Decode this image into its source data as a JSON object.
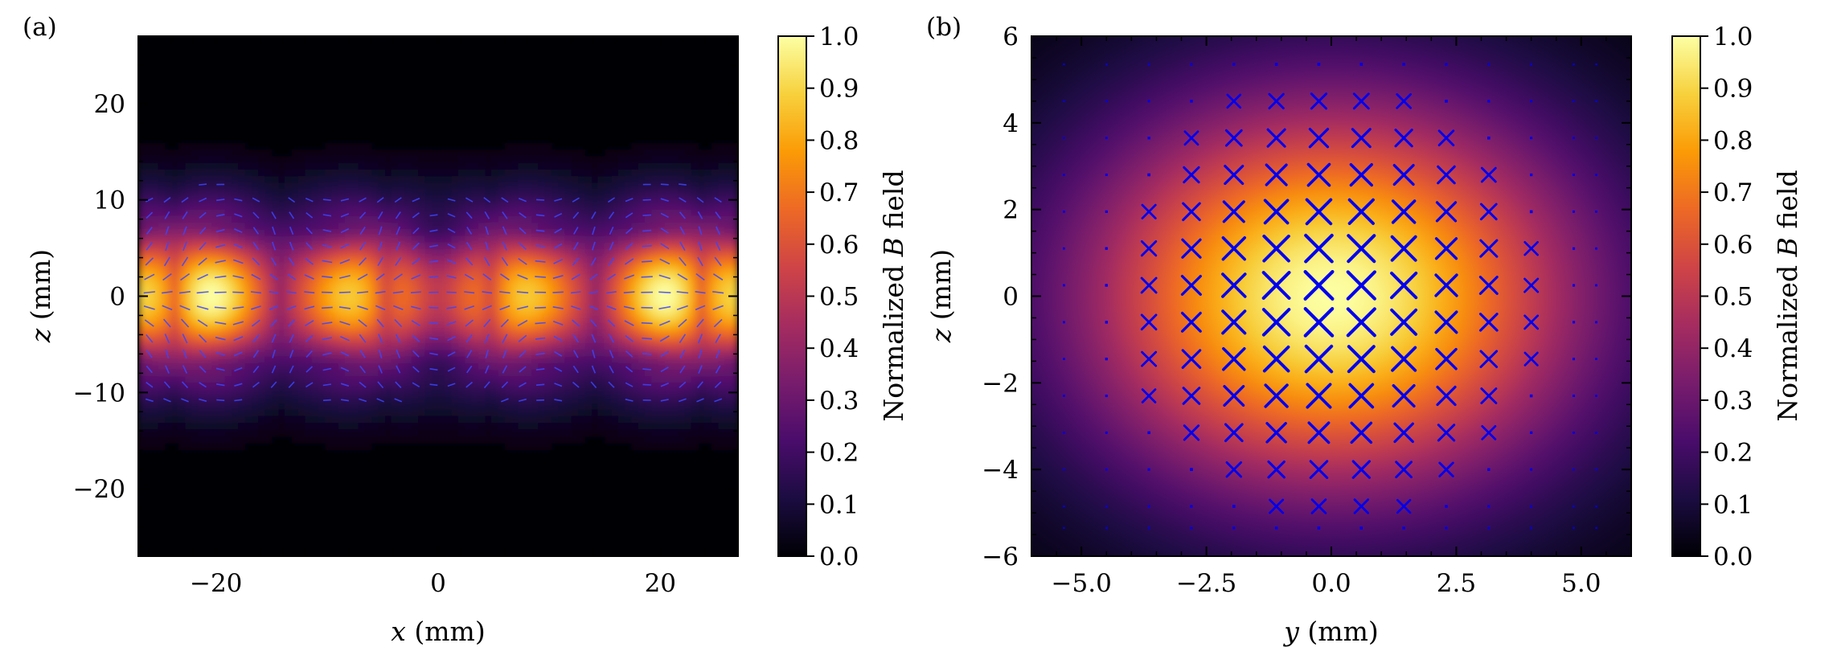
{
  "colors": {
    "colormap": [
      "#000004",
      "#1b0c41",
      "#4a0c6b",
      "#781c6d",
      "#a52c60",
      "#cf4446",
      "#ed6925",
      "#fb9b06",
      "#f7d13d",
      "#fcffa4"
    ],
    "arrows": "#3c46ff",
    "markers": "#0000ee"
  },
  "chart_data": [
    {
      "type": "heatmap",
      "panel_label": "(a)",
      "xlabel_var": "x",
      "xlabel_unit": "(mm)",
      "ylabel_var": "z",
      "ylabel_unit": "(mm)",
      "xlim": [
        -27,
        27
      ],
      "ylim": [
        -27,
        27
      ],
      "xticks": [
        -20,
        0,
        20
      ],
      "yticks": [
        -20,
        -10,
        0,
        10,
        20
      ],
      "xtick_labels": [
        "−20",
        "0",
        "20"
      ],
      "ytick_labels": [
        "−20",
        "−10",
        "0",
        "10",
        "20"
      ],
      "field_peaks_x": [
        -23,
        -5,
        5,
        23
      ],
      "overlay": "vector-field arrows",
      "colorbar": {
        "label_prefix": "Normalized",
        "label_var": "B",
        "label_suffix": "field",
        "range": [
          0.0,
          1.0
        ],
        "ticks": [
          0.0,
          0.1,
          0.2,
          0.3,
          0.4,
          0.5,
          0.6,
          0.7,
          0.8,
          0.9,
          1.0
        ],
        "tick_labels": [
          "0.0",
          "0.1",
          "0.2",
          "0.3",
          "0.4",
          "0.5",
          "0.6",
          "0.7",
          "0.8",
          "0.9",
          "1.0"
        ]
      }
    },
    {
      "type": "heatmap",
      "panel_label": "(b)",
      "xlabel_var": "y",
      "xlabel_unit": "(mm)",
      "ylabel_var": "z",
      "ylabel_unit": "(mm)",
      "xlim": [
        -6,
        6
      ],
      "ylim": [
        -6,
        6
      ],
      "xticks": [
        -5.0,
        -2.5,
        0.0,
        2.5,
        5.0
      ],
      "yticks": [
        -6,
        -4,
        -2,
        0,
        2,
        4,
        6
      ],
      "xtick_labels": [
        "−5.0",
        "−2.5",
        "0.0",
        "2.5",
        "5.0"
      ],
      "ytick_labels": [
        "−6",
        "−4",
        "−2",
        "0",
        "2",
        "4",
        "6"
      ],
      "field_center": [
        0.0,
        0.0
      ],
      "overlay": "cross markers (field into page), size proportional to field",
      "marker_grid_y": [
        -5.35,
        -4.5,
        -3.65,
        -2.8,
        -1.95,
        -1.1,
        -0.25,
        0.6,
        1.45,
        2.3,
        3.15,
        4.0,
        4.85,
        5.3
      ],
      "marker_grid_z": [
        5.35,
        4.5,
        3.65,
        2.8,
        1.95,
        1.1,
        0.25,
        -0.6,
        -1.45,
        -2.3,
        -3.15,
        -4.0,
        -4.85,
        -5.35
      ],
      "colorbar": {
        "label_prefix": "Normalized",
        "label_var": "B",
        "label_suffix": "field",
        "range": [
          0.0,
          1.0
        ],
        "ticks": [
          0.0,
          0.1,
          0.2,
          0.3,
          0.4,
          0.5,
          0.6,
          0.7,
          0.8,
          0.9,
          1.0
        ],
        "tick_labels": [
          "0.0",
          "0.1",
          "0.2",
          "0.3",
          "0.4",
          "0.5",
          "0.6",
          "0.7",
          "0.8",
          "0.9",
          "1.0"
        ]
      }
    }
  ]
}
